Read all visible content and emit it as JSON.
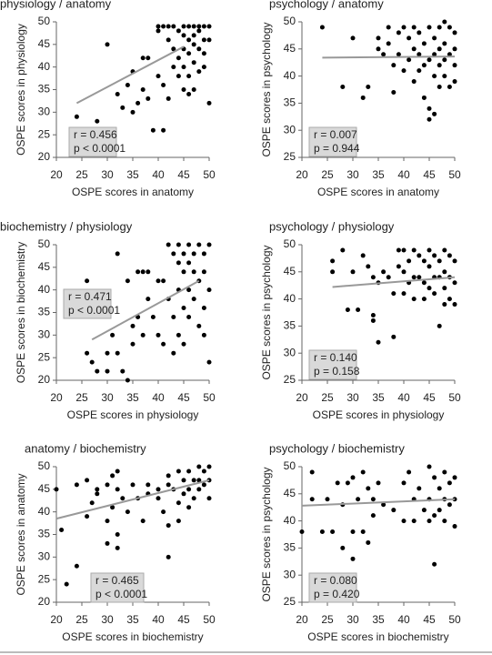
{
  "chart_data": [
    {
      "type": "scatter",
      "title": "physiology / anatomy",
      "x_label": "OSPE scores in anatomy",
      "y_label": "OSPE scores in physiology",
      "xlim": [
        20,
        50
      ],
      "ylim": [
        20,
        50
      ],
      "xticks": [
        20,
        25,
        30,
        35,
        40,
        45,
        50
      ],
      "yticks": [
        20,
        25,
        30,
        35,
        40,
        45,
        50
      ],
      "color": "#000000",
      "x": [
        24,
        28,
        30,
        32,
        33,
        34,
        35,
        35,
        36,
        37,
        37,
        38,
        38,
        39,
        40,
        40,
        40,
        41,
        41,
        41,
        42,
        42,
        42,
        43,
        43,
        43,
        44,
        44,
        44,
        45,
        45,
        45,
        45,
        45,
        46,
        46,
        46,
        46,
        46,
        47,
        47,
        47,
        47,
        47,
        48,
        48,
        48,
        48,
        49,
        49,
        49,
        49,
        50,
        50,
        50
      ],
      "y": [
        29,
        28,
        45,
        34,
        31,
        36,
        39,
        30,
        32,
        42,
        35,
        42,
        33,
        26,
        49,
        48,
        38,
        26,
        49,
        36,
        49,
        46,
        33,
        49,
        44,
        40,
        48,
        42,
        38,
        49,
        47,
        44,
        40,
        35,
        49,
        46,
        43,
        38,
        34,
        49,
        47,
        45,
        41,
        35,
        49,
        48,
        44,
        39,
        49,
        46,
        43,
        40,
        49,
        46,
        32
      ],
      "fit": {
        "x": [
          24,
          45
        ],
        "y": [
          32,
          44.5
        ],
        "color": "#999999"
      },
      "annotations": [
        "r = 0.456",
        "p < 0.0001"
      ]
    },
    {
      "type": "scatter",
      "title": "psychology / anatomy",
      "x_label": "OSPE scores in anatomy",
      "y_label": "OSPE scores in psychology",
      "xlim": [
        20,
        50
      ],
      "ylim": [
        25,
        50
      ],
      "xticks": [
        20,
        25,
        30,
        35,
        40,
        45,
        50
      ],
      "yticks": [
        25,
        30,
        35,
        40,
        45,
        50
      ],
      "color": "#000000",
      "x": [
        24,
        28,
        30,
        32,
        33,
        35,
        35,
        36,
        37,
        37,
        38,
        38,
        39,
        39,
        40,
        40,
        41,
        41,
        42,
        42,
        42,
        43,
        43,
        43,
        44,
        44,
        44,
        45,
        45,
        45,
        45,
        46,
        46,
        46,
        46,
        47,
        47,
        47,
        47,
        48,
        48,
        48,
        48,
        49,
        49,
        49,
        50,
        50,
        50,
        50
      ],
      "y": [
        49,
        38,
        47,
        36,
        38,
        47,
        45,
        44,
        49,
        46,
        37,
        42,
        48,
        44,
        49,
        41,
        47,
        43,
        49,
        45,
        39,
        48,
        44,
        41,
        46,
        42,
        36,
        49,
        43,
        34,
        32,
        47,
        44,
        33,
        40,
        49,
        45,
        42,
        38,
        50,
        46,
        43,
        40,
        49,
        44,
        38,
        48,
        45,
        42,
        39
      ],
      "fit": {
        "x": [
          24,
          50
        ],
        "y": [
          43.4,
          43.6
        ],
        "color": "#999999"
      },
      "annotations": [
        "r = 0.007",
        "p = 0.944"
      ]
    },
    {
      "type": "scatter",
      "title": "biochemistry / physiology",
      "x_label": "OSPE scores in physiology",
      "y_label": "OSPE scores in biochemistry",
      "xlim": [
        20,
        50
      ],
      "ylim": [
        20,
        50
      ],
      "xticks": [
        20,
        25,
        30,
        35,
        40,
        45,
        50
      ],
      "yticks": [
        20,
        25,
        30,
        35,
        40,
        45,
        50
      ],
      "color": "#000000",
      "x": [
        26,
        26,
        27,
        28,
        30,
        30,
        31,
        32,
        32,
        33,
        34,
        34,
        35,
        35,
        36,
        36,
        37,
        37,
        38,
        38,
        39,
        40,
        40,
        41,
        41,
        42,
        42,
        43,
        43,
        43,
        44,
        44,
        44,
        44,
        45,
        45,
        45,
        45,
        46,
        46,
        46,
        46,
        47,
        47,
        47,
        48,
        48,
        48,
        49,
        49,
        49,
        49,
        50,
        50,
        50
      ],
      "y": [
        42,
        26,
        24,
        22,
        26,
        22,
        30,
        48,
        26,
        22,
        20,
        42,
        32,
        28,
        44,
        34,
        44,
        30,
        44,
        38,
        34,
        42,
        30,
        42,
        28,
        50,
        38,
        48,
        34,
        26,
        50,
        46,
        40,
        30,
        48,
        44,
        36,
        28,
        50,
        46,
        40,
        34,
        48,
        44,
        38,
        50,
        42,
        32,
        48,
        44,
        36,
        30,
        50,
        40,
        24
      ],
      "fit": {
        "x": [
          27,
          48
        ],
        "y": [
          29,
          42
        ],
        "color": "#999999"
      },
      "annotations": [
        "r = 0.471",
        "p < 0.0001"
      ]
    },
    {
      "type": "scatter",
      "title": "psychology / physiology",
      "x_label": "OSPE scores in physiology",
      "y_label": "OSPE scores in psychology",
      "xlim": [
        20,
        50
      ],
      "ylim": [
        25,
        50
      ],
      "xticks": [
        20,
        25,
        30,
        35,
        40,
        45,
        50
      ],
      "yticks": [
        25,
        30,
        35,
        40,
        45,
        50
      ],
      "color": "#000000",
      "x": [
        26,
        26,
        28,
        29,
        30,
        31,
        32,
        33,
        34,
        34,
        34,
        35,
        35,
        36,
        37,
        38,
        38,
        39,
        39,
        40,
        40,
        40,
        41,
        41,
        42,
        42,
        42,
        43,
        43,
        44,
        44,
        44,
        45,
        45,
        45,
        46,
        46,
        46,
        47,
        47,
        47,
        48,
        48,
        48,
        48,
        49,
        49,
        49,
        50,
        50,
        50
      ],
      "y": [
        47,
        45,
        49,
        38,
        45,
        38,
        48,
        46,
        37,
        36,
        44,
        43,
        32,
        45,
        44,
        33,
        41,
        49,
        46,
        49,
        45,
        41,
        47,
        43,
        49,
        44,
        40,
        48,
        44,
        47,
        43,
        40,
        49,
        46,
        42,
        48,
        44,
        41,
        47,
        44,
        35,
        49,
        45,
        42,
        39,
        48,
        44,
        40,
        47,
        43,
        39
      ],
      "fit": {
        "x": [
          26,
          50
        ],
        "y": [
          42.2,
          44
        ],
        "color": "#999999"
      },
      "annotations": [
        "r = 0.140",
        "p = 0.158"
      ]
    },
    {
      "type": "scatter",
      "title": "anatomy / biochemistry",
      "x_label": "OSPE scores in biochemistry",
      "y_label": "OSPE scores in anatomy",
      "xlim": [
        20,
        50
      ],
      "ylim": [
        20,
        50
      ],
      "xticks": [
        20,
        25,
        30,
        35,
        40,
        45,
        50
      ],
      "yticks": [
        20,
        25,
        30,
        35,
        40,
        45,
        50
      ],
      "color": "#000000",
      "x": [
        20,
        21,
        22,
        24,
        24,
        26,
        26,
        27,
        28,
        28,
        30,
        30,
        30,
        31,
        31,
        32,
        32,
        32,
        32,
        33,
        34,
        35,
        36,
        37,
        38,
        38,
        40,
        40,
        41,
        42,
        42,
        42,
        42,
        43,
        44,
        44,
        44,
        45,
        45,
        46,
        46,
        46,
        47,
        47,
        48,
        48,
        48,
        49,
        49,
        50,
        50,
        50
      ],
      "y": [
        45,
        36,
        24,
        28,
        46,
        39,
        47,
        42,
        45,
        44,
        46,
        33,
        38,
        48,
        41,
        49,
        45,
        35,
        32,
        43,
        40,
        46,
        43,
        38,
        46,
        44,
        45,
        43,
        40,
        48,
        46,
        30,
        37,
        45,
        49,
        42,
        38,
        47,
        44,
        49,
        45,
        41,
        47,
        43,
        50,
        47,
        45,
        49,
        46,
        50,
        47,
        43
      ],
      "fit": {
        "x": [
          20,
          50
        ],
        "y": [
          38.5,
          47
        ],
        "color": "#999999"
      },
      "annotations": [
        "r = 0.465",
        "p < 0.0001"
      ]
    },
    {
      "type": "scatter",
      "title": "psychology / biochemistry",
      "x_label": "OSPE scores in biochemistry",
      "y_label": "OSPE scores in psychology",
      "xlim": [
        20,
        50
      ],
      "ylim": [
        25,
        50
      ],
      "xticks": [
        20,
        25,
        30,
        35,
        40,
        45,
        50
      ],
      "yticks": [
        25,
        30,
        35,
        40,
        45,
        50
      ],
      "color": "#000000",
      "x": [
        20,
        22,
        22,
        24,
        25,
        26,
        27,
        28,
        28,
        29,
        30,
        30,
        30,
        31,
        32,
        32,
        33,
        33,
        34,
        34,
        35,
        36,
        38,
        40,
        40,
        41,
        42,
        42,
        43,
        44,
        45,
        45,
        45,
        46,
        46,
        46,
        47,
        47,
        48,
        48,
        48,
        49,
        49,
        50,
        50,
        50
      ],
      "y": [
        38,
        49,
        44,
        38,
        44,
        38,
        47,
        35,
        43,
        47,
        33,
        38,
        48,
        44,
        49,
        38,
        46,
        36,
        44,
        41,
        47,
        43,
        42,
        47,
        40,
        49,
        44,
        40,
        46,
        42,
        50,
        44,
        40,
        48,
        32,
        41,
        46,
        42,
        49,
        44,
        40,
        47,
        43,
        48,
        44,
        39
      ],
      "fit": {
        "x": [
          20,
          50
        ],
        "y": [
          42.8,
          44
        ],
        "color": "#999999"
      },
      "annotations": [
        "r = 0.080",
        "p = 0.420"
      ]
    }
  ]
}
